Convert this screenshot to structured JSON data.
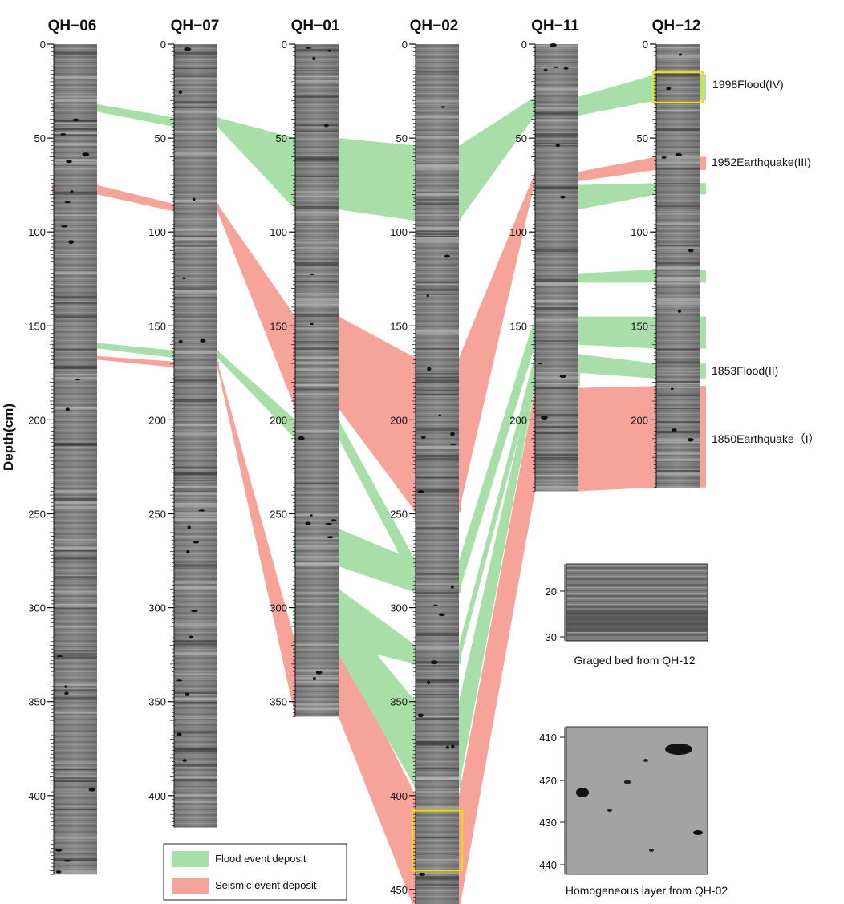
{
  "y_axis_label": "Depth(cm)",
  "colors": {
    "flood": "#a8dfa8",
    "seismic": "#f6a49a",
    "highlight_box": "#f2e000",
    "core_light": "#b8b8b8",
    "core_dark": "#3a3a3a"
  },
  "cores": [
    {
      "name": "QH-06",
      "title": "QH−06",
      "bottom_depth": 442,
      "ticks": [
        "0",
        "50",
        "100",
        "150",
        "200",
        "250",
        "300",
        "350",
        "400"
      ]
    },
    {
      "name": "QH-07",
      "title": "QH−07",
      "bottom_depth": 417,
      "ticks": [
        "0",
        "50",
        "100",
        "150",
        "200",
        "250",
        "300",
        "350",
        "400"
      ]
    },
    {
      "name": "QH-01",
      "title": "QH−01",
      "bottom_depth": 358,
      "ticks": [
        "0",
        "50",
        "100",
        "150",
        "200",
        "250",
        "300",
        "350"
      ]
    },
    {
      "name": "QH-02",
      "title": "QH−02",
      "bottom_depth": 460,
      "ticks": [
        "0",
        "50",
        "100",
        "150",
        "200",
        "250",
        "300",
        "350",
        "400",
        "450"
      ]
    },
    {
      "name": "QH-11",
      "title": "QH−11",
      "bottom_depth": 238,
      "ticks": [
        "0",
        "50",
        "100",
        "150",
        "200"
      ]
    },
    {
      "name": "QH-12",
      "title": "QH−12",
      "bottom_depth": 236,
      "ticks": [
        "0",
        "50",
        "100",
        "150",
        "200"
      ]
    }
  ],
  "event_labels": [
    {
      "text": "1998Flood(IV)"
    },
    {
      "text": "1952Earthquake(III)"
    },
    {
      "text": "1853Flood(II)"
    },
    {
      "text": "1850Earthquake（I）"
    }
  ],
  "event_bands": [
    {
      "type": "flood",
      "segments": [
        [
          0,
          32,
          36
        ],
        [
          1,
          39,
          44
        ],
        [
          2,
          50,
          88
        ],
        [
          3,
          54,
          94
        ],
        [
          4,
          28,
          38
        ],
        [
          5,
          16,
          30
        ]
      ]
    },
    {
      "type": "seismic",
      "segments": [
        [
          0,
          75,
          80
        ],
        [
          1,
          85,
          89
        ],
        [
          2,
          145,
          194
        ],
        [
          3,
          167,
          249
        ],
        [
          4,
          68,
          73
        ],
        [
          5,
          60,
          67
        ]
      ]
    },
    {
      "type": "flood",
      "segments": [
        [
          4,
          75,
          88
        ],
        [
          5,
          74,
          80
        ]
      ]
    },
    {
      "type": "flood",
      "segments": [
        [
          4,
          122,
          127
        ],
        [
          5,
          120,
          127
        ]
      ]
    },
    {
      "type": "flood",
      "segments": [
        [
          0,
          159,
          162
        ],
        [
          1,
          163,
          167
        ],
        [
          2,
          200,
          210
        ],
        [
          3,
          275,
          288
        ],
        [
          4,
          145,
          160
        ],
        [
          5,
          145,
          162
        ]
      ]
    },
    {
      "type": "seismic",
      "segments": [
        [
          0,
          166,
          168
        ],
        [
          1,
          169,
          172
        ],
        [
          2,
          318,
          358
        ],
        [
          3,
          400,
          462
        ],
        [
          4,
          183,
          238
        ],
        [
          5,
          182,
          236
        ]
      ]
    },
    {
      "type": "flood",
      "segments": [
        [
          2,
          258,
          278
        ],
        [
          3,
          275,
          292
        ],
        [
          4,
          150,
          160
        ]
      ]
    },
    {
      "type": "flood",
      "segments": [
        [
          2,
          290,
          320
        ],
        [
          3,
          320,
          330
        ],
        [
          4,
          165,
          175
        ],
        [
          5,
          170,
          178
        ]
      ]
    },
    {
      "type": "flood",
      "segments": [
        [
          2,
          300,
          325
        ],
        [
          3,
          350,
          396
        ],
        [
          4,
          170,
          182
        ]
      ]
    }
  ],
  "highlight_boxes": [
    {
      "core": "QH-12",
      "from": 15,
      "to": 31
    },
    {
      "core": "QH-02",
      "from": 408,
      "to": 440
    }
  ],
  "insets": [
    {
      "caption": "Graged bed from QH-12",
      "ticks": [
        "20",
        "30"
      ]
    },
    {
      "caption": "Homogeneous layer from QH-02",
      "ticks": [
        "410",
        "420",
        "430",
        "440"
      ]
    }
  ],
  "legend": [
    {
      "label": "Flood event deposit",
      "type": "flood"
    },
    {
      "label": "Seismic event deposit",
      "type": "seismic"
    }
  ]
}
